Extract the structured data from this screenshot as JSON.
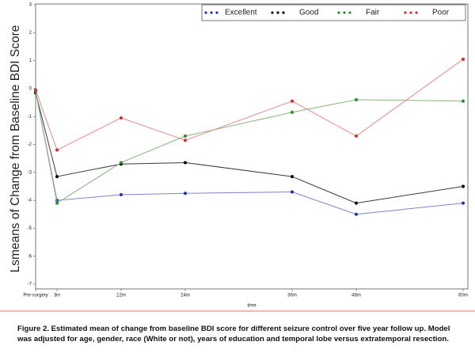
{
  "chart_data": {
    "type": "line",
    "y_label": "Lsmeans of Change from Baseline BDI Score",
    "x_label": "time",
    "x": [
      0,
      3,
      12,
      21,
      36,
      45,
      60
    ],
    "xlim": [
      0,
      60
    ],
    "xticks": [
      {
        "value": 0,
        "label": "Pre-surgery"
      },
      {
        "value": 3,
        "label": "3m"
      },
      {
        "value": 12,
        "label": "12m"
      },
      {
        "value": 21,
        "label": "24m"
      },
      {
        "value": 36,
        "label": "36m"
      },
      {
        "value": 45,
        "label": "48m"
      },
      {
        "value": 60,
        "label": "60m"
      }
    ],
    "ylim": [
      -7,
      3
    ],
    "yticks": [
      -7,
      -6,
      -5,
      -4,
      -3,
      -2,
      -1,
      0,
      1,
      2,
      3
    ],
    "legend": "top-right",
    "series": [
      {
        "name": "Excellent",
        "color": "#1f2fb0",
        "values": [
          -0.1,
          -4.0,
          -3.8,
          -3.75,
          -3.7,
          -4.5,
          -4.1
        ]
      },
      {
        "name": "Good",
        "color": "#000000",
        "values": [
          -0.15,
          -3.15,
          -2.7,
          -2.65,
          -3.15,
          -4.1,
          -3.5
        ]
      },
      {
        "name": "Fair",
        "color": "#2a8a2a",
        "values": [
          -0.1,
          -4.1,
          -2.65,
          -1.7,
          -0.85,
          -0.4,
          -0.45
        ]
      },
      {
        "name": "Poor",
        "color": "#d42a2a",
        "values": [
          -0.05,
          -2.2,
          -1.05,
          -1.85,
          -0.45,
          -1.7,
          1.05
        ]
      }
    ]
  },
  "caption": "Figure 2. Estimated mean of change from baseline BDI score for different seizure control over five year follow up.  Model was adjusted for age, gender, race (White or not), years of education and temporal lobe versus extratemporal resection."
}
